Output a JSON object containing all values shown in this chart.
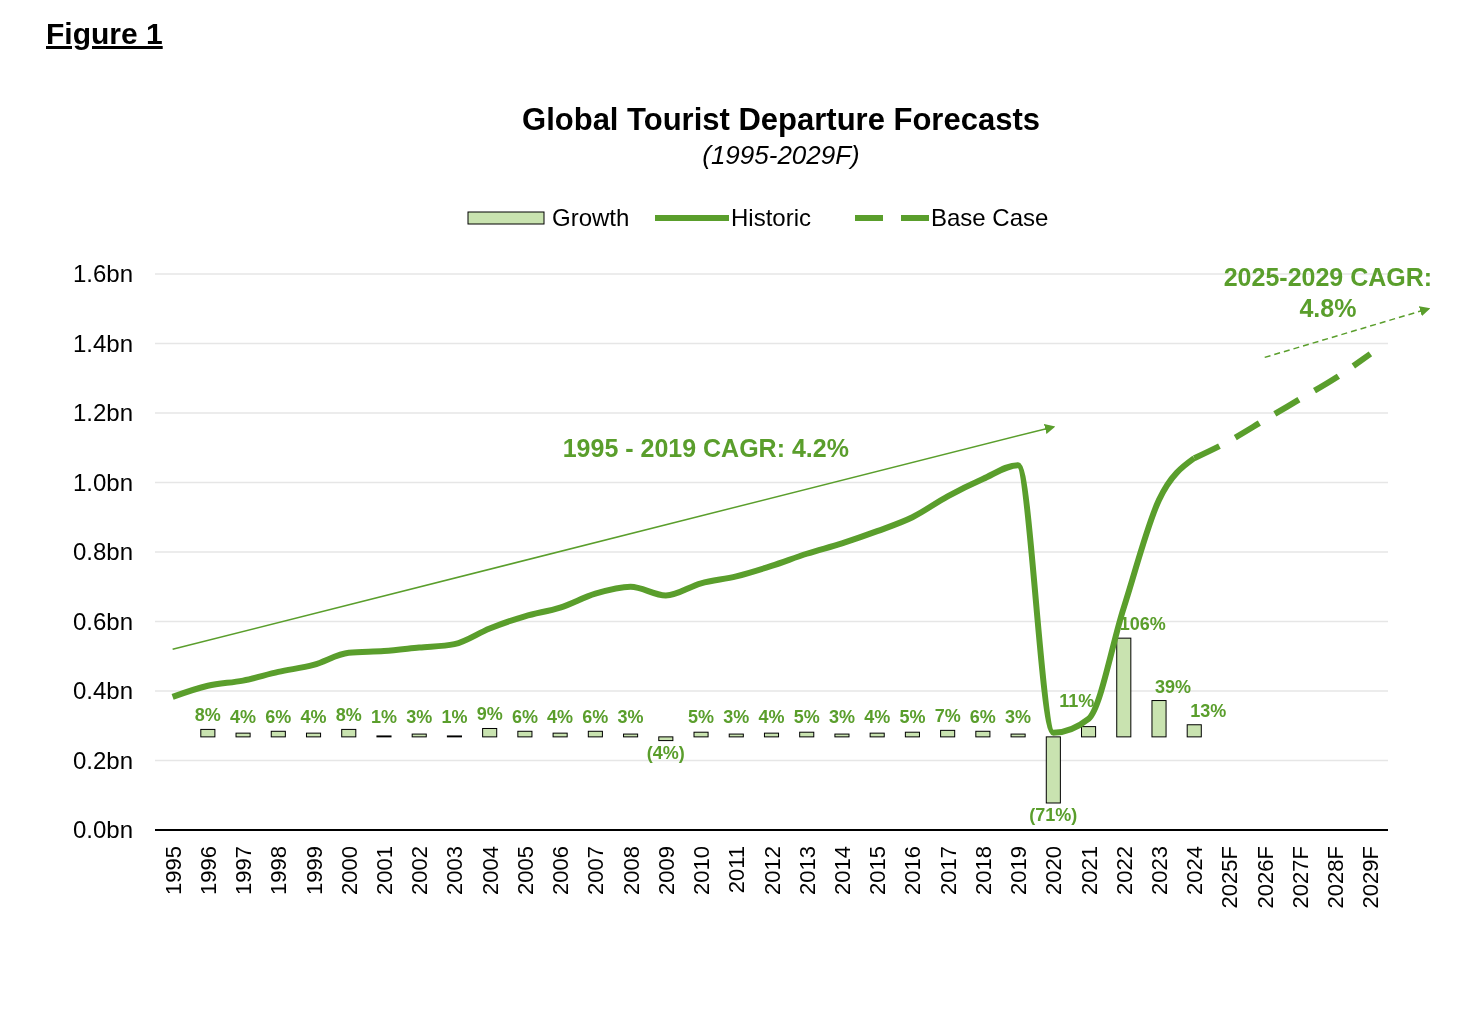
{
  "chart_data": {
    "type": "line",
    "title": "Global Tourist Departure Forecasts",
    "subtitle": "(1995-2029F)",
    "categories": [
      "1995",
      "1996",
      "1997",
      "1998",
      "1999",
      "2000",
      "2001",
      "2002",
      "2003",
      "2004",
      "2005",
      "2006",
      "2007",
      "2008",
      "2009",
      "2010",
      "2011",
      "2012",
      "2013",
      "2014",
      "2015",
      "2016",
      "2017",
      "2018",
      "2019",
      "2020",
      "2021",
      "2022",
      "2023",
      "2024",
      "2025F",
      "2026F",
      "2027F",
      "2028F",
      "2029F"
    ],
    "series": [
      {
        "name": "Growth",
        "type": "bar",
        "axis": "y2",
        "color": "#c9e3b0",
        "values": [
          null,
          8,
          4,
          6,
          4,
          8,
          1,
          3,
          1,
          9,
          6,
          4,
          6,
          3,
          -4,
          5,
          3,
          4,
          5,
          3,
          4,
          5,
          7,
          6,
          3,
          -71,
          11,
          106,
          39,
          13,
          null,
          null,
          null,
          null,
          null
        ],
        "value_labels": [
          null,
          "8%",
          "4%",
          "6%",
          "4%",
          "8%",
          "1%",
          "3%",
          "1%",
          "9%",
          "6%",
          "4%",
          "6%",
          "3%",
          "(4%)",
          "5%",
          "3%",
          "4%",
          "5%",
          "3%",
          "4%",
          "5%",
          "7%",
          "6%",
          "3%",
          "(71%)",
          "11%",
          "106%",
          "39%",
          "13%",
          null,
          null,
          null,
          null,
          null
        ]
      },
      {
        "name": "Historic",
        "color": "#5a9e2c",
        "line_style": "solid",
        "values": [
          0.383,
          0.415,
          0.43,
          0.455,
          0.475,
          0.51,
          0.515,
          0.525,
          0.535,
          0.58,
          0.615,
          0.64,
          0.68,
          0.7,
          0.675,
          0.71,
          0.73,
          0.76,
          0.795,
          0.825,
          0.86,
          0.9,
          0.96,
          1.01,
          1.05,
          0.28,
          0.32,
          0.64,
          0.95,
          1.07,
          null,
          null,
          null,
          null,
          null
        ]
      },
      {
        "name": "Base Case",
        "color": "#5a9e2c",
        "line_style": "dashed",
        "values": [
          null,
          null,
          null,
          null,
          null,
          null,
          null,
          null,
          null,
          null,
          null,
          null,
          null,
          null,
          null,
          null,
          null,
          null,
          null,
          null,
          null,
          null,
          null,
          null,
          null,
          null,
          null,
          null,
          null,
          1.07,
          1.12,
          1.18,
          1.24,
          1.3,
          1.37
        ]
      }
    ],
    "ylim": [
      0,
      1.6
    ],
    "yticks": [
      {
        "value": 0,
        "label": "0.0bn"
      },
      {
        "value": 0.2,
        "label": "0.2bn"
      },
      {
        "value": 0.4,
        "label": "0.4bn"
      },
      {
        "value": 0.6,
        "label": "0.6bn"
      },
      {
        "value": 0.8,
        "label": "0.8bn"
      },
      {
        "value": 1,
        "label": "1.0bn"
      },
      {
        "value": 1.2,
        "label": "1.2bn"
      },
      {
        "value": 1.4,
        "label": "1.4bn"
      },
      {
        "value": 1.6,
        "label": "1.6bn"
      }
    ],
    "y2lim": [
      -100,
      497
    ],
    "grid": "y",
    "legend": "top",
    "annotations": [
      "Figure 1",
      "1995 - 2019 CAGR: 4.2%",
      "2025-2029 CAGR: 4.8%"
    ]
  }
}
